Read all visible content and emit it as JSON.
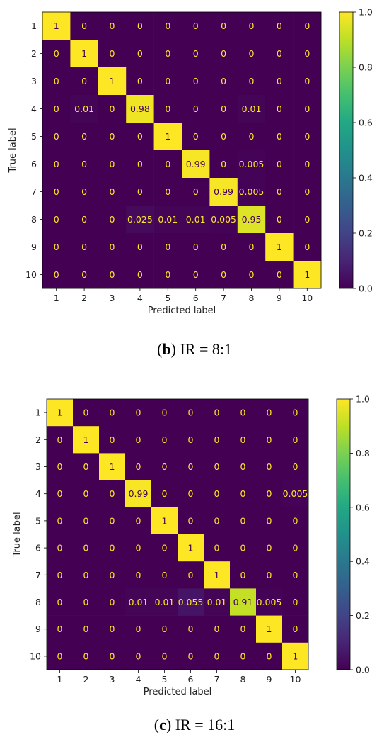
{
  "chart_data": [
    {
      "type": "heatmap",
      "caption": {
        "letter": "b",
        "text": " IR = 8:1"
      },
      "xlabel": "Predicted label",
      "ylabel": "True label",
      "x_categories": [
        "1",
        "2",
        "3",
        "4",
        "5",
        "6",
        "7",
        "8",
        "9",
        "10"
      ],
      "y_categories": [
        "1",
        "2",
        "3",
        "4",
        "5",
        "6",
        "7",
        "8",
        "9",
        "10"
      ],
      "value_range": [
        0,
        1
      ],
      "colormap": "viridis",
      "colorbar_ticks": [
        "0.0",
        "0.2",
        "0.4",
        "0.6",
        "0.8",
        "1.0"
      ],
      "values": [
        [
          1,
          0,
          0,
          0,
          0,
          0,
          0,
          0,
          0,
          0
        ],
        [
          0,
          1,
          0,
          0,
          0,
          0,
          0,
          0,
          0,
          0
        ],
        [
          0,
          0,
          1,
          0,
          0,
          0,
          0,
          0,
          0,
          0
        ],
        [
          0,
          0.01,
          0,
          0.98,
          0,
          0,
          0,
          0.01,
          0,
          0
        ],
        [
          0,
          0,
          0,
          0,
          1,
          0,
          0,
          0,
          0,
          0
        ],
        [
          0,
          0,
          0,
          0,
          0,
          0.99,
          0,
          0.005,
          0,
          0
        ],
        [
          0,
          0,
          0,
          0,
          0,
          0,
          0.99,
          0.005,
          0,
          0
        ],
        [
          0,
          0,
          0,
          0.025,
          0.01,
          0.01,
          0.005,
          0.95,
          0,
          0
        ],
        [
          0,
          0,
          0,
          0,
          0,
          0,
          0,
          0,
          1,
          0
        ],
        [
          0,
          0,
          0,
          0,
          0,
          0,
          0,
          0,
          0,
          1
        ]
      ]
    },
    {
      "type": "heatmap",
      "caption": {
        "letter": "c",
        "text": " IR = 16:1"
      },
      "xlabel": "Predicted label",
      "ylabel": "True label",
      "x_categories": [
        "1",
        "2",
        "3",
        "4",
        "5",
        "6",
        "7",
        "8",
        "9",
        "10"
      ],
      "y_categories": [
        "1",
        "2",
        "3",
        "4",
        "5",
        "6",
        "7",
        "8",
        "9",
        "10"
      ],
      "value_range": [
        0,
        1
      ],
      "colormap": "viridis",
      "colorbar_ticks": [
        "0.0",
        "0.2",
        "0.4",
        "0.6",
        "0.8",
        "1.0"
      ],
      "values": [
        [
          1,
          0,
          0,
          0,
          0,
          0,
          0,
          0,
          0,
          0
        ],
        [
          0,
          1,
          0,
          0,
          0,
          0,
          0,
          0,
          0,
          0
        ],
        [
          0,
          0,
          1,
          0,
          0,
          0,
          0,
          0,
          0,
          0
        ],
        [
          0,
          0,
          0,
          0.99,
          0,
          0,
          0,
          0,
          0,
          0.005
        ],
        [
          0,
          0,
          0,
          0,
          1,
          0,
          0,
          0,
          0,
          0
        ],
        [
          0,
          0,
          0,
          0,
          0,
          1,
          0,
          0,
          0,
          0
        ],
        [
          0,
          0,
          0,
          0,
          0,
          0,
          1,
          0,
          0,
          0
        ],
        [
          0,
          0,
          0,
          0.01,
          0.01,
          0.055,
          0.01,
          0.91,
          0.005,
          0
        ],
        [
          0,
          0,
          0,
          0,
          0,
          0,
          0,
          0,
          1,
          0
        ],
        [
          0,
          0,
          0,
          0,
          0,
          0,
          0,
          0,
          0,
          1
        ]
      ]
    }
  ]
}
